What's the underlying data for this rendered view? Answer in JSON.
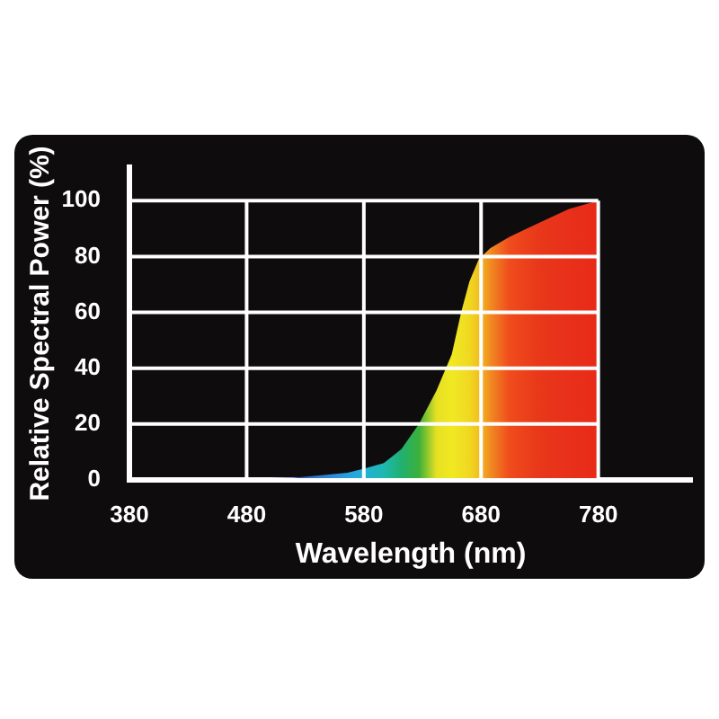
{
  "chart_data": {
    "type": "area",
    "xlabel": "Wavelength (nm)",
    "ylabel": "Relative Spectral Power (%)",
    "x": [
      380,
      430,
      480,
      520,
      540,
      566,
      580,
      597,
      612,
      627,
      642,
      655,
      663,
      670,
      678,
      688,
      704,
      729,
      755,
      780
    ],
    "values": [
      0.5,
      0.5,
      0.5,
      0.8,
      1.5,
      2.6,
      4,
      6,
      11,
      20,
      32,
      45,
      60,
      71,
      79,
      83,
      87,
      92,
      97,
      100
    ],
    "colors": [
      "#8a2a6a",
      "#7a2a72",
      "#5a2a86",
      "#3a4aa8",
      "#2a78d0",
      "#2a9ee0",
      "#22b0d8",
      "#1fb8b0",
      "#20b070",
      "#3cb03a",
      "#e6e022",
      "#f0e820",
      "#f0e024",
      "#f0d820",
      "#f2c020",
      "#f08a22",
      "#f04c1c",
      "#e8381a",
      "#e8301a",
      "#e82a18"
    ],
    "xlim": [
      380,
      860
    ],
    "ylim": [
      0,
      112
    ],
    "xticks": [
      380,
      480,
      580,
      680,
      780
    ],
    "yticks": [
      0,
      20,
      40,
      60,
      80,
      100
    ],
    "grid": true
  }
}
